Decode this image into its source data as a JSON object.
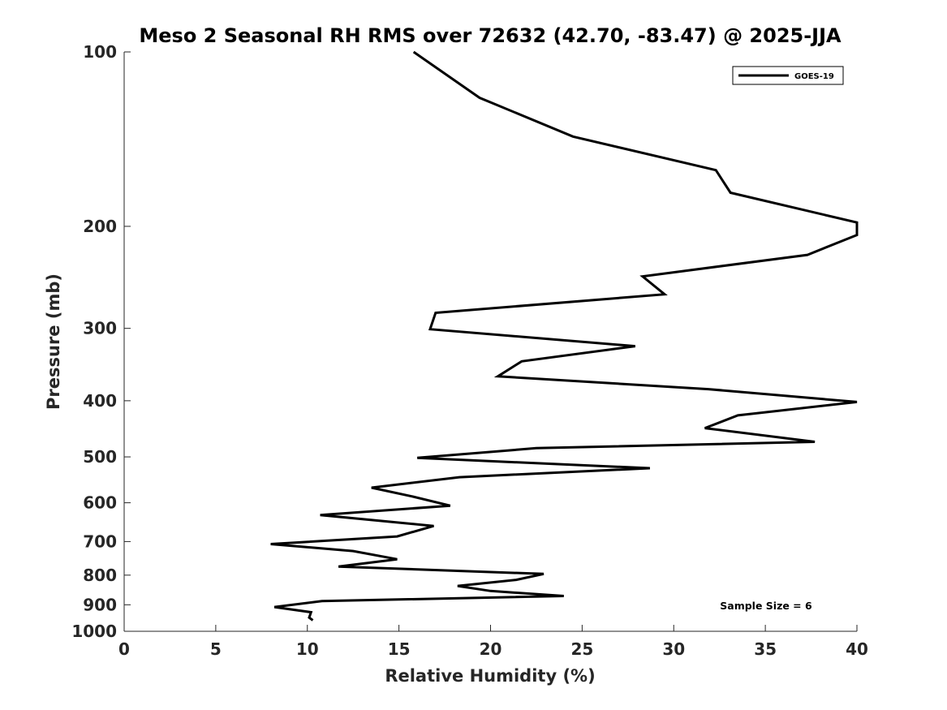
{
  "chart_data": {
    "type": "line",
    "title": "Meso 2 Seasonal RH RMS over 72632 (42.70, -83.47) @ 2025-JJA",
    "xlabel": "Relative Humidity (%)",
    "ylabel": "Pressure (mb)",
    "xlim": [
      0,
      40
    ],
    "ylim": [
      1000,
      100
    ],
    "y_scale": "log",
    "x_ticks": [
      "0",
      "5",
      "10",
      "15",
      "20",
      "25",
      "30",
      "35",
      "40"
    ],
    "y_ticks": [
      "100",
      "200",
      "300",
      "400",
      "500",
      "600",
      "700",
      "800",
      "900",
      "1000"
    ],
    "legend": {
      "position": "top-right",
      "entries": [
        "GOES-19"
      ]
    },
    "annotation": "Sample Size = 6",
    "series": [
      {
        "name": "GOES-19",
        "color": "#000000",
        "points": [
          [
            15.8,
            100
          ],
          [
            19.4,
            120
          ],
          [
            24.5,
            140
          ],
          [
            32.3,
            160
          ],
          [
            33.1,
            175
          ],
          [
            40.0,
            197
          ],
          [
            40.0,
            207
          ],
          [
            37.3,
            224
          ],
          [
            28.3,
            244
          ],
          [
            29.5,
            262
          ],
          [
            17.0,
            282
          ],
          [
            16.7,
            301
          ],
          [
            27.9,
            322
          ],
          [
            21.7,
            342
          ],
          [
            20.4,
            363
          ],
          [
            31.9,
            382
          ],
          [
            40.0,
            402
          ],
          [
            33.5,
            424
          ],
          [
            31.7,
            446
          ],
          [
            37.7,
            471
          ],
          [
            22.5,
            483
          ],
          [
            16.0,
            502
          ],
          [
            28.7,
            523
          ],
          [
            18.3,
            542
          ],
          [
            13.5,
            565
          ],
          [
            15.7,
            585
          ],
          [
            17.8,
            607
          ],
          [
            10.7,
            630
          ],
          [
            16.9,
            658
          ],
          [
            14.9,
            686
          ],
          [
            8.0,
            707
          ],
          [
            12.5,
            727
          ],
          [
            14.9,
            751
          ],
          [
            11.7,
            773
          ],
          [
            22.9,
            796
          ],
          [
            21.4,
            815
          ],
          [
            18.2,
            835
          ],
          [
            20.0,
            852
          ],
          [
            24.0,
            869
          ],
          [
            10.8,
            887
          ],
          [
            8.2,
            908
          ],
          [
            10.2,
            927
          ],
          [
            10.1,
            947
          ],
          [
            10.3,
            957
          ]
        ]
      }
    ]
  }
}
